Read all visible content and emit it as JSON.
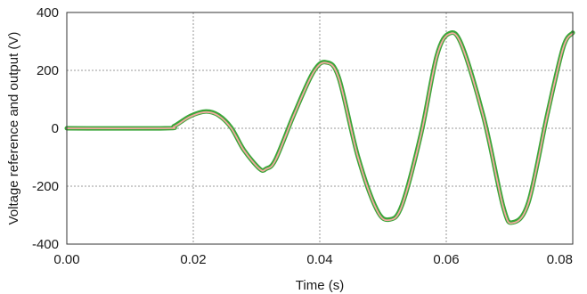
{
  "chart_data": {
    "type": "line",
    "title": "",
    "xlabel": "Time (s)",
    "ylabel": "Voltage reference and output (V)",
    "xlim": [
      0,
      0.08
    ],
    "ylim": [
      -400,
      400
    ],
    "grid": true,
    "x_ticks": [
      0.0,
      0.02,
      0.04,
      0.06,
      0.08
    ],
    "x_tick_labels": [
      "0.00",
      "0.02",
      "0.04",
      "0.06",
      "0.08"
    ],
    "y_ticks": [
      400,
      200,
      0,
      -200,
      -400
    ],
    "y_tick_labels": [
      "400",
      "200",
      "0",
      "-200",
      "-400"
    ],
    "series": [
      {
        "color": "#3aa63a",
        "x": [
          0.0,
          0.0155,
          0.017,
          0.0195,
          0.022,
          0.024,
          0.026,
          0.028,
          0.0305,
          0.0315,
          0.033,
          0.036,
          0.039,
          0.041,
          0.043,
          0.046,
          0.049,
          0.051,
          0.053,
          0.056,
          0.0585,
          0.0605,
          0.0625,
          0.066,
          0.069,
          0.0705,
          0.073,
          0.076,
          0.0785,
          0.08
        ],
        "y": [
          0,
          0,
          8,
          42,
          58,
          45,
          2,
          -75,
          -140,
          -140,
          -108,
          52,
          195,
          228,
          175,
          -95,
          -280,
          -315,
          -265,
          -20,
          250,
          328,
          285,
          30,
          -270,
          -325,
          -255,
          50,
          280,
          330
        ]
      },
      {
        "color": "#f4a9a0",
        "x": [
          0.0,
          0.0155,
          0.017,
          0.0195,
          0.022,
          0.024,
          0.026,
          0.028,
          0.0305,
          0.0315,
          0.033,
          0.036,
          0.039,
          0.041,
          0.043,
          0.046,
          0.049,
          0.051,
          0.053,
          0.056,
          0.0585,
          0.0605,
          0.0625,
          0.066,
          0.069,
          0.0705,
          0.073,
          0.076,
          0.0785,
          0.08
        ],
        "y": [
          0,
          0,
          6,
          40,
          56,
          43,
          0,
          -76,
          -141,
          -141,
          -110,
          50,
          193,
          226,
          173,
          -97,
          -282,
          -317,
          -267,
          -22,
          248,
          326,
          283,
          28,
          -272,
          -327,
          -257,
          48,
          278,
          328
        ]
      }
    ]
  }
}
